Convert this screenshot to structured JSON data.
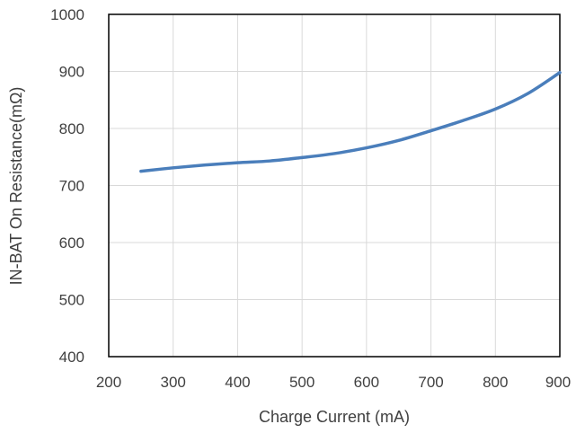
{
  "chart_data": {
    "type": "line",
    "title": "",
    "xlabel": "Charge Current (mA)",
    "ylabel": "IN-BAT On Resistance(mΩ)",
    "xlim": [
      200,
      900
    ],
    "ylim": [
      400,
      1000
    ],
    "x_ticks": [
      200,
      300,
      400,
      500,
      600,
      700,
      800,
      900
    ],
    "y_ticks": [
      400,
      500,
      600,
      700,
      800,
      900,
      1000
    ],
    "x_tick_labels": [
      "200",
      "300",
      "400",
      "500",
      "600",
      "700",
      "800",
      "900"
    ],
    "y_tick_labels": [
      "400",
      "500",
      "600",
      "700",
      "800",
      "900",
      "1000"
    ],
    "grid": true,
    "legend": "none",
    "series": [
      {
        "color": "#4a7ebb",
        "x": [
          250,
          300,
          350,
          400,
          450,
          500,
          550,
          600,
          650,
          700,
          750,
          800,
          850,
          900
        ],
        "y": [
          725,
          731,
          736,
          740,
          743,
          749,
          756,
          766,
          779,
          796,
          814,
          834,
          861,
          898
        ]
      }
    ]
  }
}
